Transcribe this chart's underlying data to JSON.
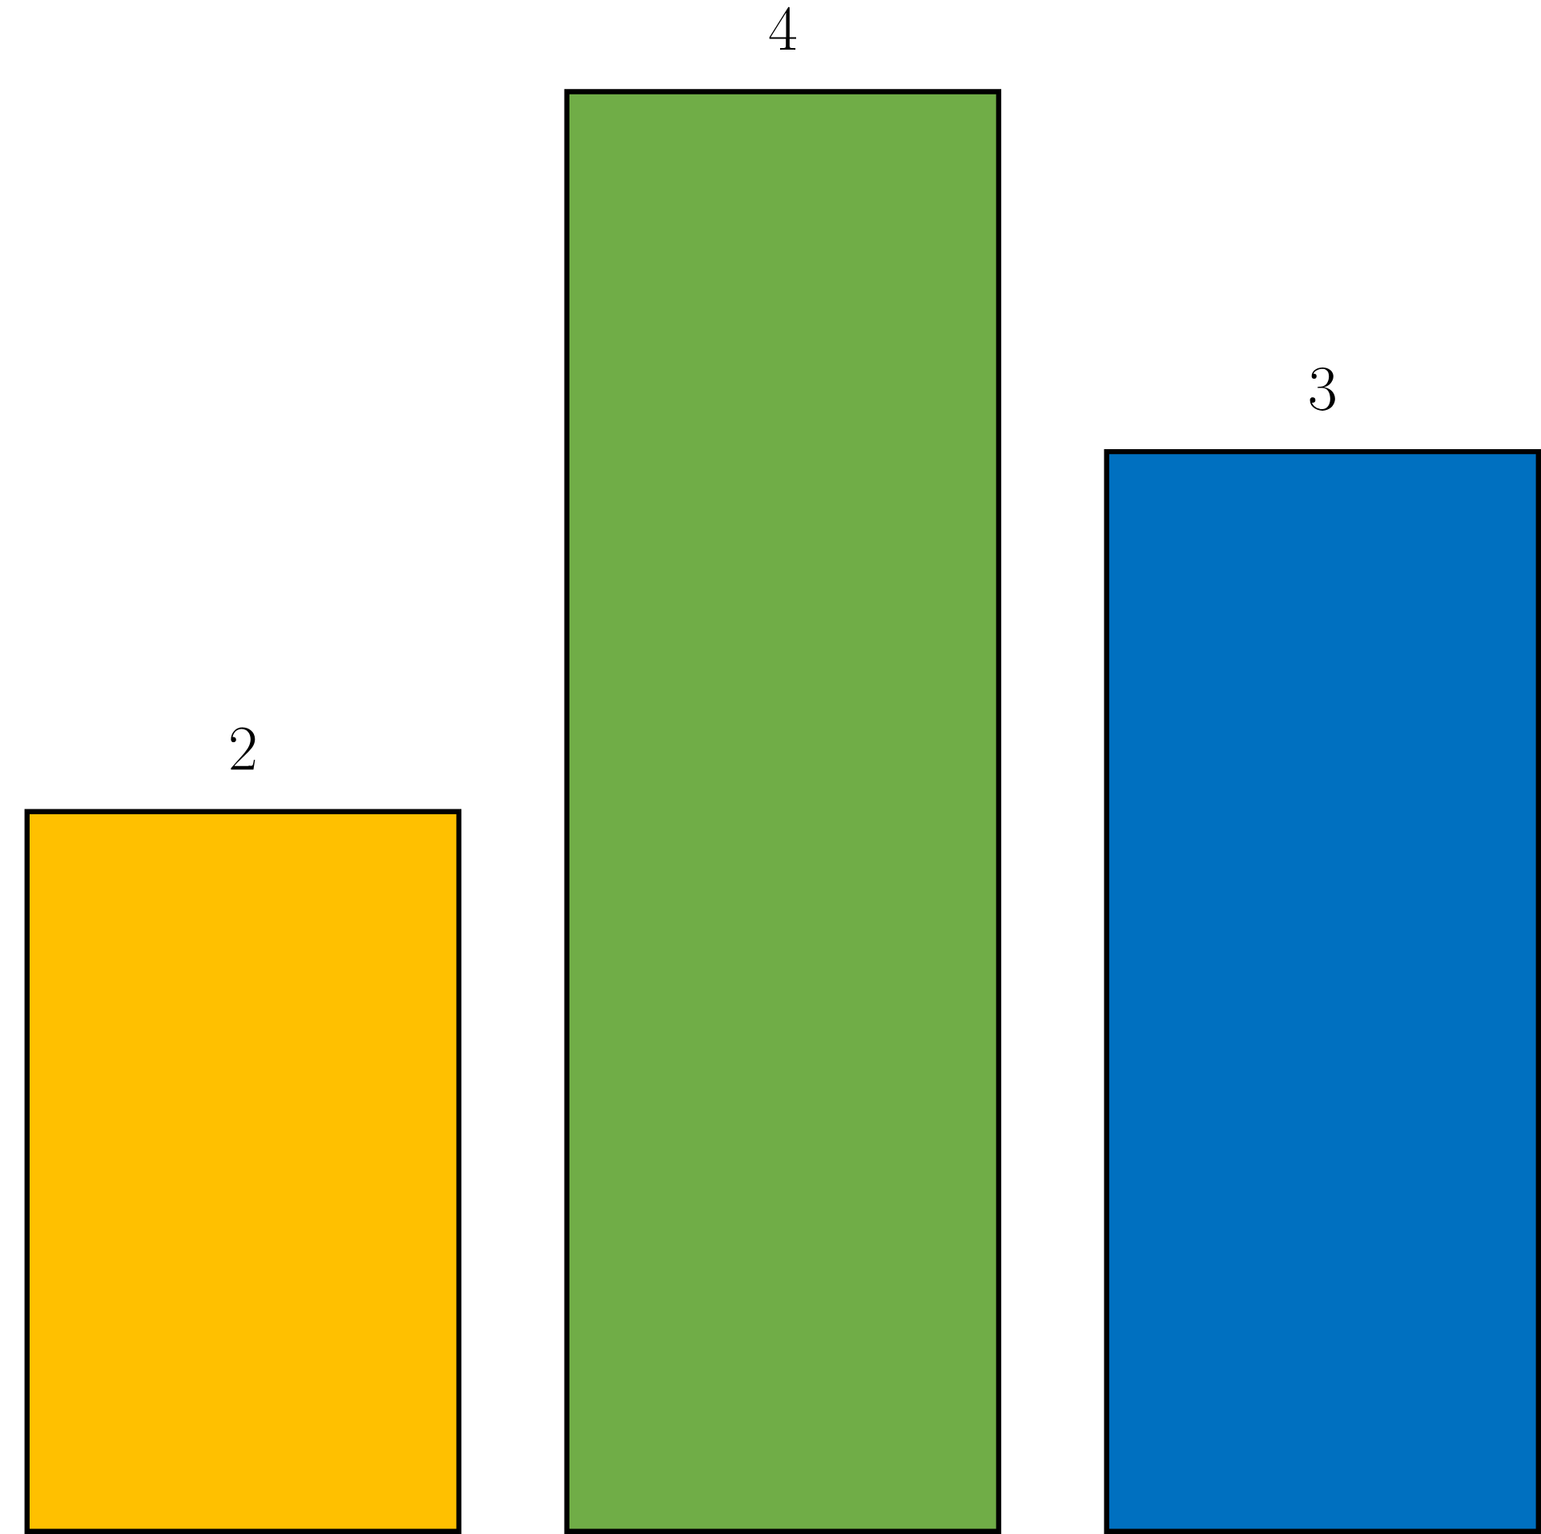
{
  "chart_data": {
    "type": "bar",
    "categories": [
      null,
      null,
      null
    ],
    "values": [
      2,
      4,
      3
    ],
    "colors": [
      "#ffc000",
      "#70ad47",
      "#0070c0"
    ],
    "data_labels": true
  }
}
